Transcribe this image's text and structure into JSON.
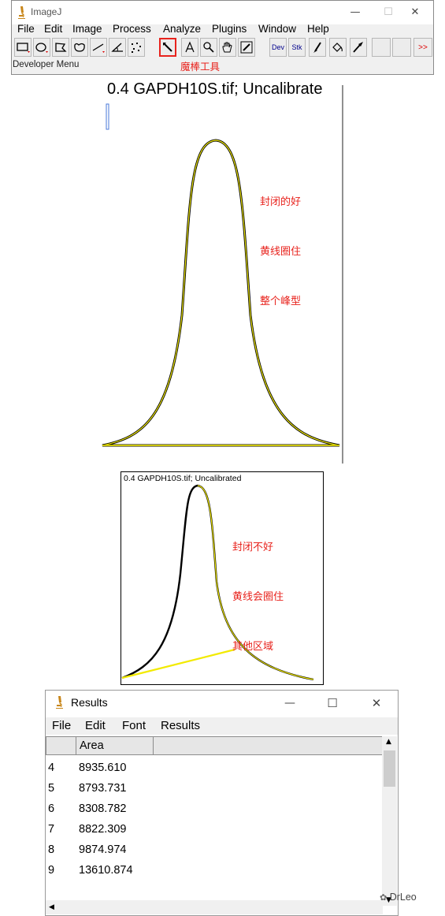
{
  "imagej": {
    "title": "ImageJ",
    "window_controls": {
      "minimize": "—",
      "maximize": "☐",
      "close": "✕"
    },
    "menu": [
      "File",
      "Edit",
      "Image",
      "Process",
      "Analyze",
      "Plugins",
      "Window",
      "Help"
    ],
    "toolbar": {
      "tools": [
        "rectangle",
        "oval",
        "polygon",
        "freehand",
        "straight-line",
        "angle",
        "multi-point",
        "wand",
        "text",
        "magnifier",
        "hand",
        "color-picker",
        "dev",
        "stk",
        "brush",
        "flood-fill",
        "arrow"
      ],
      "dev_label": "Dev",
      "stk_label": "Stk",
      "more_label": ">>"
    },
    "status": "Developer Menu",
    "wand_caption": "魔棒工具",
    "accent_color": "#e8231d"
  },
  "plot1": {
    "title": "0.4 GAPDH10S.tif; Uncalibrate",
    "note_lines": [
      "封闭的好",
      "黄线圈住",
      "整个峰型"
    ]
  },
  "plot2": {
    "title": "0.4 GAPDH10S.tif; Uncalibrated",
    "note_lines": [
      "封闭不好",
      "黄线会圈住",
      "其他区域"
    ]
  },
  "results": {
    "title": "Results",
    "window_controls": {
      "minimize": "—",
      "maximize": "☐",
      "close": "✕"
    },
    "menu": [
      "File",
      "Edit",
      "Font",
      "Results"
    ],
    "column_header": "Area",
    "rows": [
      {
        "index": "4",
        "area": "8935.610"
      },
      {
        "index": "5",
        "area": "8793.731"
      },
      {
        "index": "6",
        "area": "8308.782"
      },
      {
        "index": "7",
        "area": "8822.309"
      },
      {
        "index": "8",
        "area": "9874.974"
      },
      {
        "index": "9",
        "area": "13610.874"
      }
    ]
  },
  "watermark": "DrLeo"
}
